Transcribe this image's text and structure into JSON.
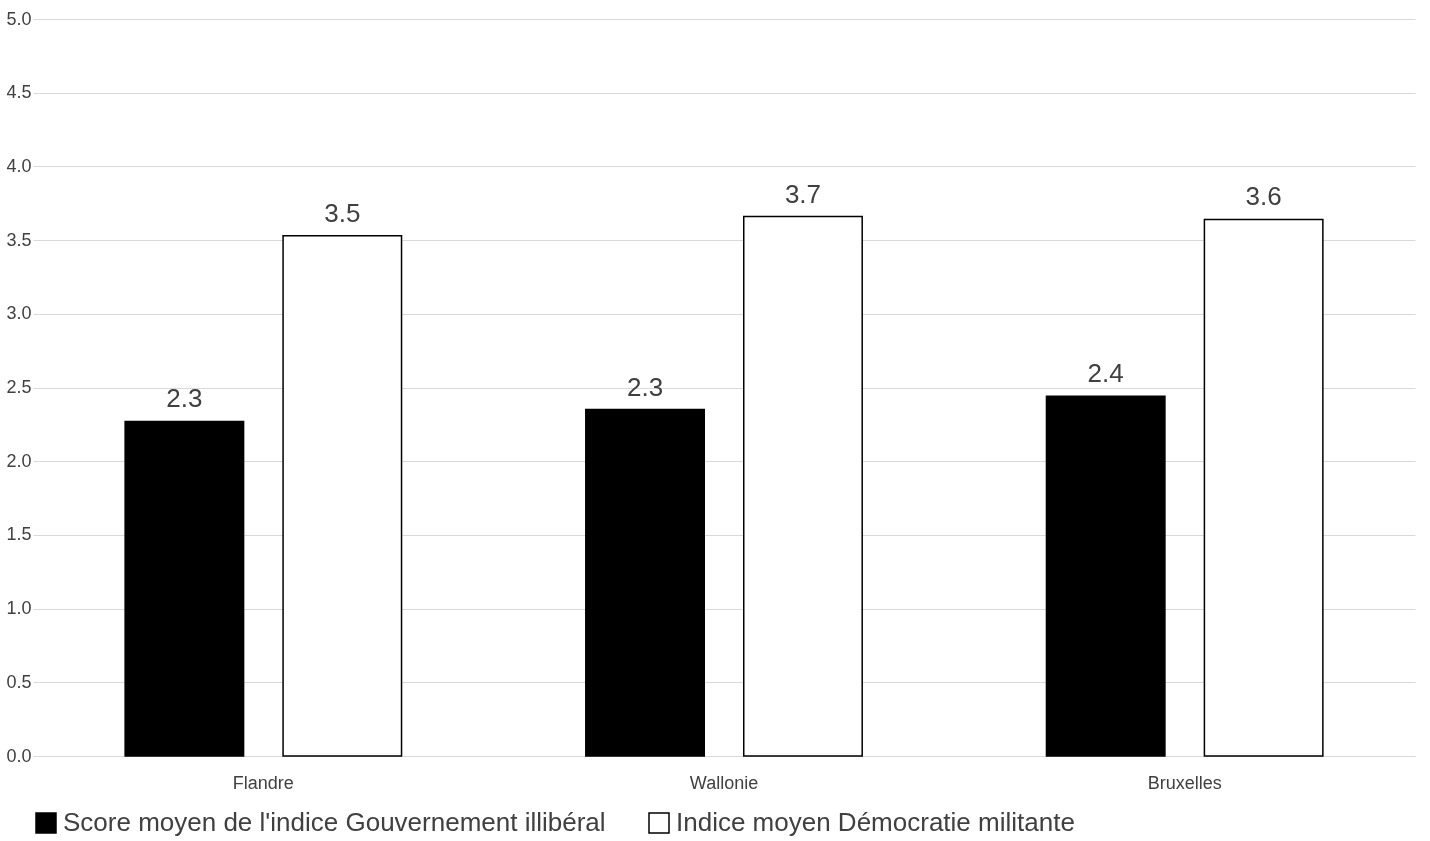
{
  "chart_data": {
    "type": "bar",
    "categories": [
      "Flandre",
      "Wallonie",
      "Bruxelles"
    ],
    "series": [
      {
        "name": "Score moyen de l'indice Gouvernement illibéral",
        "color": "#000000",
        "values": [
          2.27,
          2.35,
          2.44
        ],
        "value_labels": [
          "2.3",
          "2.3",
          "2.4"
        ]
      },
      {
        "name": "Indice moyen Démocratie militante",
        "color": "#ffffff",
        "values": [
          3.53,
          3.66,
          3.64
        ],
        "value_labels": [
          "3.5",
          "3.7",
          "3.6"
        ]
      }
    ],
    "ylim": [
      0,
      5
    ],
    "yticks": [
      {
        "value": 0,
        "label": "0.0"
      },
      {
        "value": 0.5,
        "label": "0.5"
      },
      {
        "value": 1,
        "label": "1.0"
      },
      {
        "value": 1.5,
        "label": "1.5"
      },
      {
        "value": 2,
        "label": "2.0"
      },
      {
        "value": 2.5,
        "label": "2.5"
      },
      {
        "value": 3,
        "label": "3.0"
      },
      {
        "value": 3.5,
        "label": "3.5"
      },
      {
        "value": 4,
        "label": "4.0"
      },
      {
        "value": 4.5,
        "label": "4.5"
      },
      {
        "value": 5,
        "label": "5.0"
      }
    ],
    "grid": "y",
    "legend": "bottom"
  }
}
